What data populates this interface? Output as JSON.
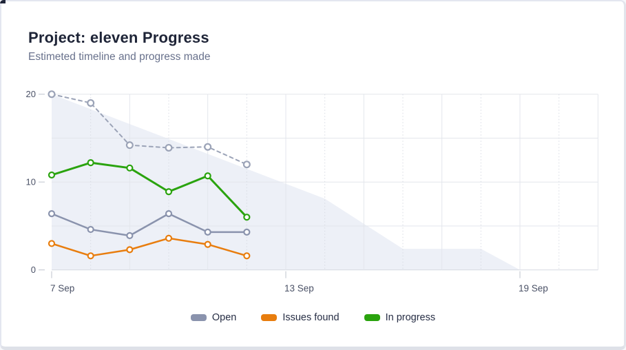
{
  "card": {
    "title": "Project: eleven Progress",
    "subtitle": "Estimeted timeline and progress made"
  },
  "colors": {
    "title_text": "#1e2437",
    "subtitle_text": "#68718c",
    "axis_text": "#4a5166",
    "grid_solid": "#e3e6ec",
    "grid_dotted": "#d8dbe3",
    "grid_zero": "#d6d9e1",
    "tick_mark": "#c9cdd6",
    "area_fill": "#edf0f7",
    "card_border": "#e3e6f0",
    "open": "#8a93ad",
    "issues_found": "#e87d0e",
    "in_progress": "#2aa30e",
    "estimated": "#9ba3b7"
  },
  "chart_data": {
    "type": "line",
    "title": "Project: eleven Progress",
    "subtitle": "Estimeted timeline and progress made",
    "x_axis": {
      "unit": "days",
      "tick_labels": [
        "7 Sep",
        "13 Sep",
        "19 Sep"
      ],
      "tick_days": [
        0,
        6,
        12
      ],
      "total_days": 14,
      "minor_grid_days_dotted": [
        1,
        3,
        5,
        7,
        9,
        11,
        13
      ],
      "minor_grid_days_solid": [
        2,
        4,
        6,
        8,
        10,
        12,
        14
      ]
    },
    "y_axis": {
      "min": 0,
      "max": 20,
      "tick_labels": [
        "0",
        "10",
        "20"
      ],
      "tick_values": [
        0,
        10,
        20
      ],
      "grid_values": [
        0,
        5,
        10,
        15,
        20
      ]
    },
    "grid": "both",
    "legend_position": "bottom",
    "series": [
      {
        "name": "Estimated",
        "style": "dashed",
        "color_key": "estimated",
        "in_legend": false,
        "days": [
          0,
          1,
          2,
          3,
          4,
          5
        ],
        "values": [
          20,
          19,
          14.2,
          13.9,
          14,
          12
        ]
      },
      {
        "name": "Open",
        "style": "solid",
        "color_key": "open",
        "in_legend": true,
        "days": [
          0,
          1,
          2,
          3,
          4,
          5
        ],
        "values": [
          6.4,
          4.6,
          3.9,
          6.4,
          4.3,
          4.3
        ]
      },
      {
        "name": "Issues found",
        "style": "solid",
        "color_key": "issues_found",
        "in_legend": true,
        "days": [
          0,
          1,
          2,
          3,
          4,
          5
        ],
        "values": [
          3,
          1.6,
          2.3,
          3.6,
          2.9,
          1.6
        ]
      },
      {
        "name": "In progress",
        "style": "solid",
        "color_key": "in_progress",
        "in_legend": true,
        "days": [
          0,
          1,
          2,
          3,
          4,
          5
        ],
        "values": [
          10.8,
          12.2,
          11.6,
          8.9,
          10.7,
          6
        ]
      }
    ],
    "area": {
      "name": "estimated-scope-area",
      "fill_key": "area_fill",
      "points_day_value": [
        [
          0,
          20
        ],
        [
          7,
          8.1
        ],
        [
          9,
          2.4
        ],
        [
          11,
          2.4
        ],
        [
          12,
          0
        ]
      ]
    }
  },
  "legend": {
    "items": [
      {
        "label": "Open",
        "color_key": "open"
      },
      {
        "label": "Issues found",
        "color_key": "issues_found"
      },
      {
        "label": "In progress",
        "color_key": "in_progress"
      }
    ]
  }
}
